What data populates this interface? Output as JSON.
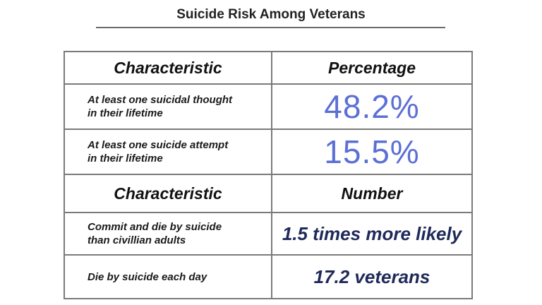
{
  "title": "Suicide Risk Among Veterans",
  "section1": {
    "header_left": "Characteristic",
    "header_right": "Percentage",
    "rows": [
      {
        "characteristic_line1": "At least one suicidal thought",
        "characteristic_line2": "in their lifetime",
        "value": "48.2%"
      },
      {
        "characteristic_line1": "At least one suicide attempt",
        "characteristic_line2": "in their lifetime",
        "value": "15.5%"
      }
    ]
  },
  "section2": {
    "header_left": "Characteristic",
    "header_right": "Number",
    "rows": [
      {
        "characteristic_line1": "Commit and die by suicide",
        "characteristic_line2": "than civillian adults",
        "value": "1.5 times more likely"
      },
      {
        "characteristic_line1": "Die by suicide each day",
        "characteristic_line2": "",
        "value": "17.2 veterans"
      }
    ]
  },
  "colors": {
    "percentage": "#5b6fd6",
    "number": "#1f2a5a",
    "border": "#7a7a7a"
  }
}
